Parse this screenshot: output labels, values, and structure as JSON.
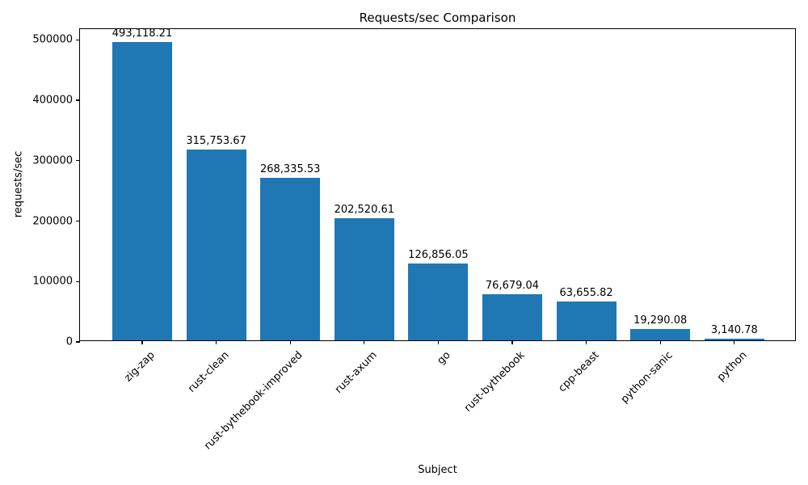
{
  "chart_data": {
    "type": "bar",
    "title": "Requests/sec Comparison",
    "xlabel": "Subject",
    "ylabel": "requests/sec",
    "categories": [
      "zig-zap",
      "rust-clean",
      "rust-bythebook-improved",
      "rust-axum",
      "go",
      "rust-bythebook",
      "cpp-beast",
      "python-sanic",
      "python"
    ],
    "values": [
      493118.21,
      315753.67,
      268335.53,
      202520.61,
      126856.05,
      76679.04,
      63655.82,
      19290.08,
      3140.78
    ],
    "value_labels": [
      "493,118.21",
      "315,753.67",
      "268,335.53",
      "202,520.61",
      "126,856.05",
      "76,679.04",
      "63,655.82",
      "19,290.08",
      "3,140.78"
    ],
    "yticks": [
      0,
      100000,
      200000,
      300000,
      400000,
      500000
    ],
    "ytick_labels": [
      "0",
      "100000",
      "200000",
      "300000",
      "400000",
      "500000"
    ],
    "ylim": [
      0,
      517774
    ],
    "bar_color": "#1f77b4",
    "grid": false,
    "legend_position": "none",
    "x_tick_rotation_deg": 45
  }
}
